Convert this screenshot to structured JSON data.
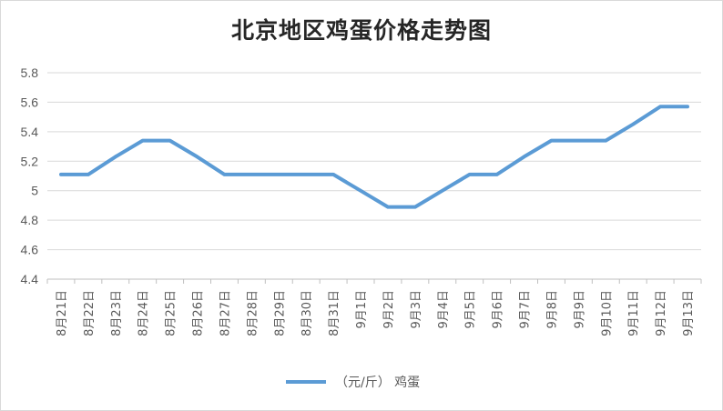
{
  "chart_data": {
    "type": "line",
    "title": "北京地区鸡蛋价格走势图",
    "xlabel": "",
    "ylabel": "",
    "ylim": [
      4.4,
      5.8
    ],
    "yticks": [
      "4.4",
      "4.6",
      "4.8",
      "5",
      "5.2",
      "5.4",
      "5.6",
      "5.8"
    ],
    "grid": true,
    "legend_position": "bottom",
    "categories": [
      "8月21日",
      "8月22日",
      "8月23日",
      "8月24日",
      "8月25日",
      "8月26日",
      "8月27日",
      "8月28日",
      "8月29日",
      "8月30日",
      "8月31日",
      "9月1日",
      "9月2日",
      "9月3日",
      "9月4日",
      "9月5日",
      "9月6日",
      "9月7日",
      "9月8日",
      "9月9日",
      "9月10日",
      "9月11日",
      "9月12日",
      "9月13日"
    ],
    "series": [
      {
        "name": "（元/斤） 鸡蛋",
        "color": "#5b9bd5",
        "values": [
          5.11,
          5.11,
          5.23,
          5.34,
          5.34,
          5.23,
          5.11,
          5.11,
          5.11,
          5.11,
          5.11,
          5.0,
          4.89,
          4.89,
          5.0,
          5.11,
          5.11,
          5.23,
          5.34,
          5.34,
          5.34,
          5.45,
          5.57,
          5.57
        ]
      }
    ]
  }
}
